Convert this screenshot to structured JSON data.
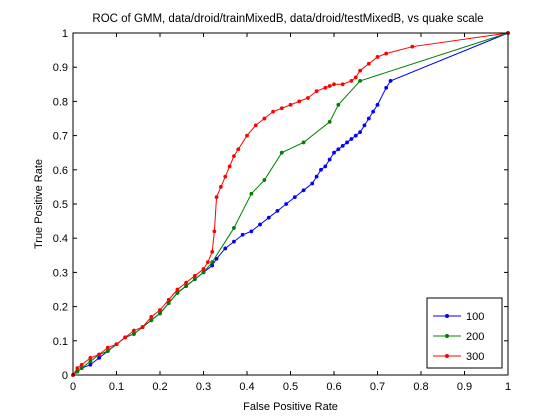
{
  "chart_data": {
    "type": "line",
    "title": "ROC of GMM, data/droid/trainMixedB, data/droid/testMixedB, vs quake scale",
    "xlabel": "False Positive Rate",
    "ylabel": "True Positive Rate",
    "xlim": [
      0,
      1
    ],
    "ylim": [
      0,
      1
    ],
    "xticks": [
      "0",
      "0.1",
      "0.2",
      "0.3",
      "0.4",
      "0.5",
      "0.6",
      "0.7",
      "0.8",
      "0.9",
      "1"
    ],
    "yticks": [
      "0",
      "0.1",
      "0.2",
      "0.3",
      "0.4",
      "0.5",
      "0.6",
      "0.7",
      "0.8",
      "0.9",
      "1"
    ],
    "grid": false,
    "legend_position": "bottom-right",
    "series": [
      {
        "name": "100",
        "color": "#0000ff",
        "x": [
          0,
          0.01,
          0.02,
          0.04,
          0.06,
          0.08,
          0.1,
          0.12,
          0.14,
          0.16,
          0.18,
          0.2,
          0.22,
          0.24,
          0.26,
          0.28,
          0.3,
          0.32,
          0.33,
          0.35,
          0.37,
          0.39,
          0.41,
          0.43,
          0.45,
          0.47,
          0.49,
          0.51,
          0.53,
          0.55,
          0.56,
          0.57,
          0.58,
          0.59,
          0.6,
          0.61,
          0.62,
          0.63,
          0.64,
          0.65,
          0.66,
          0.67,
          0.68,
          0.69,
          0.7,
          0.72,
          0.73,
          1.0
        ],
        "y": [
          0,
          0.01,
          0.02,
          0.03,
          0.05,
          0.07,
          0.09,
          0.11,
          0.12,
          0.14,
          0.16,
          0.18,
          0.21,
          0.24,
          0.26,
          0.28,
          0.3,
          0.32,
          0.34,
          0.37,
          0.39,
          0.41,
          0.42,
          0.44,
          0.46,
          0.48,
          0.5,
          0.52,
          0.54,
          0.56,
          0.58,
          0.6,
          0.61,
          0.63,
          0.65,
          0.66,
          0.67,
          0.68,
          0.69,
          0.7,
          0.71,
          0.73,
          0.75,
          0.77,
          0.79,
          0.84,
          0.86,
          1.0
        ]
      },
      {
        "name": "200",
        "color": "#008000",
        "x": [
          0,
          0.01,
          0.02,
          0.04,
          0.06,
          0.08,
          0.1,
          0.12,
          0.14,
          0.16,
          0.18,
          0.2,
          0.22,
          0.24,
          0.26,
          0.28,
          0.3,
          0.32,
          0.37,
          0.41,
          0.44,
          0.48,
          0.53,
          0.59,
          0.61,
          0.66,
          1.0
        ],
        "y": [
          0,
          0.01,
          0.02,
          0.04,
          0.06,
          0.07,
          0.09,
          0.11,
          0.12,
          0.14,
          0.16,
          0.18,
          0.21,
          0.24,
          0.26,
          0.28,
          0.3,
          0.33,
          0.43,
          0.53,
          0.57,
          0.65,
          0.68,
          0.74,
          0.79,
          0.86,
          1.0
        ]
      },
      {
        "name": "300",
        "color": "#ff0000",
        "x": [
          0,
          0.01,
          0.02,
          0.04,
          0.06,
          0.08,
          0.1,
          0.12,
          0.14,
          0.16,
          0.18,
          0.2,
          0.22,
          0.24,
          0.26,
          0.28,
          0.3,
          0.31,
          0.32,
          0.325,
          0.33,
          0.34,
          0.35,
          0.36,
          0.37,
          0.38,
          0.4,
          0.42,
          0.44,
          0.46,
          0.48,
          0.5,
          0.52,
          0.54,
          0.56,
          0.58,
          0.59,
          0.6,
          0.62,
          0.64,
          0.65,
          0.66,
          0.68,
          0.7,
          0.72,
          0.78,
          1.0
        ],
        "y": [
          0,
          0.02,
          0.03,
          0.05,
          0.06,
          0.08,
          0.09,
          0.11,
          0.13,
          0.14,
          0.17,
          0.19,
          0.22,
          0.25,
          0.27,
          0.29,
          0.31,
          0.33,
          0.36,
          0.42,
          0.52,
          0.55,
          0.58,
          0.61,
          0.64,
          0.66,
          0.7,
          0.73,
          0.75,
          0.77,
          0.78,
          0.79,
          0.8,
          0.81,
          0.83,
          0.84,
          0.845,
          0.85,
          0.85,
          0.86,
          0.87,
          0.89,
          0.91,
          0.93,
          0.94,
          0.96,
          1.0
        ]
      }
    ]
  }
}
